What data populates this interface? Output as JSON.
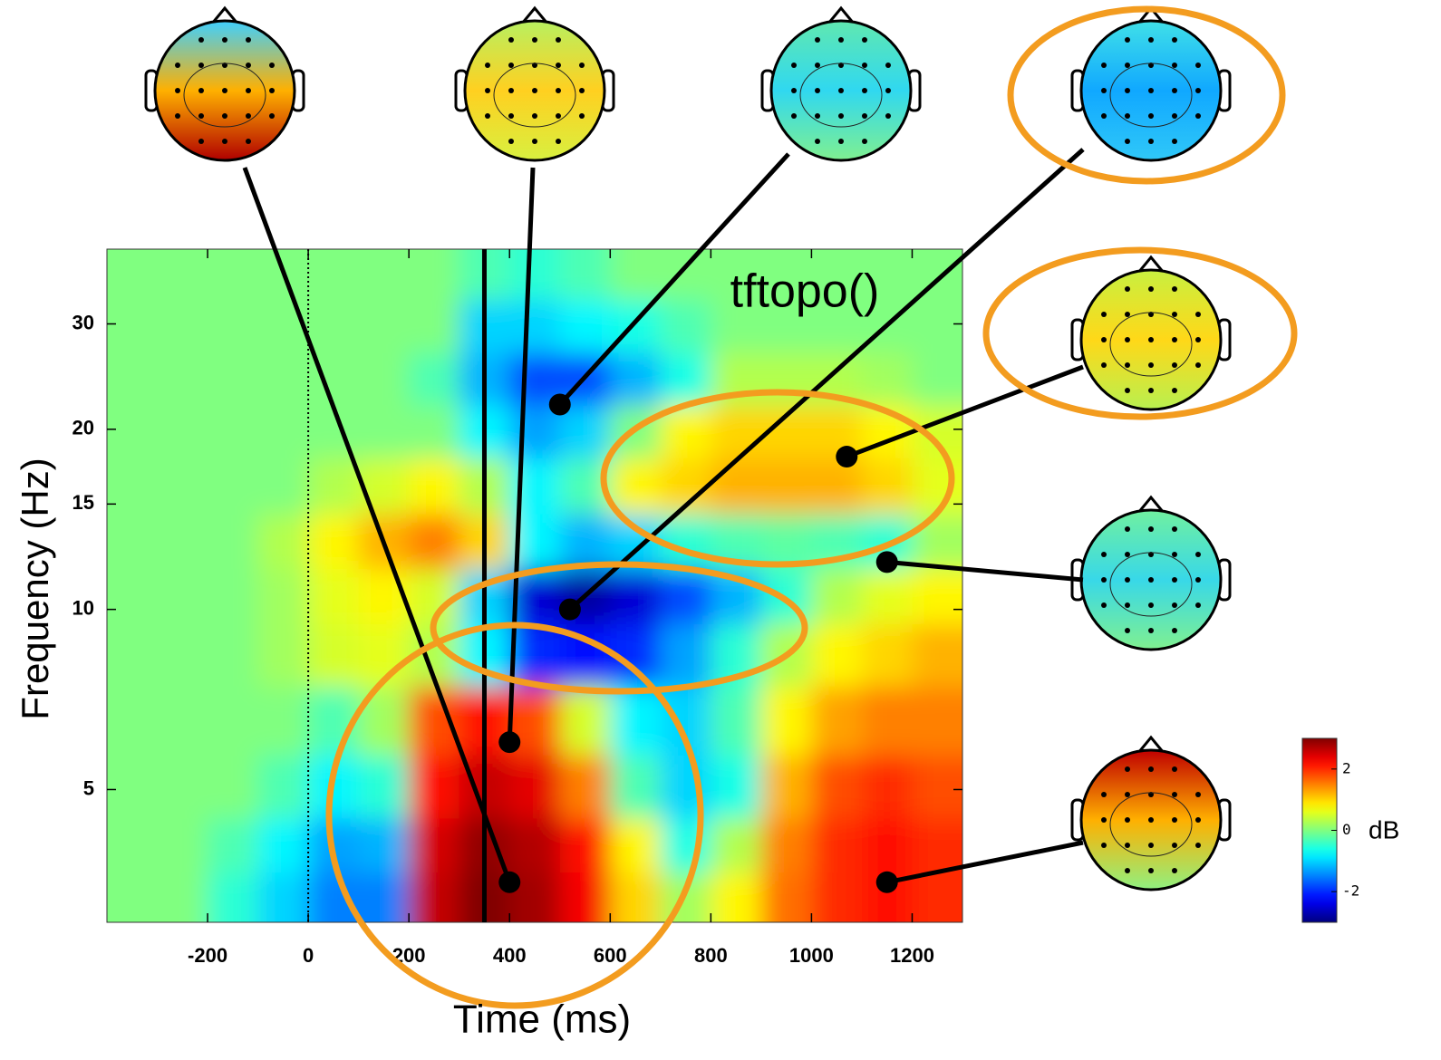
{
  "chart_data": {
    "type": "heatmap",
    "annotation": "tftopo()",
    "xlabel": "Time (ms)",
    "ylabel": "Frequency (Hz)",
    "xlim": [
      -400,
      1300
    ],
    "xticks": [
      -200,
      0,
      200,
      400,
      600,
      800,
      1000,
      1200
    ],
    "ylim": [
      3,
      40
    ],
    "yscale": "log",
    "yticks": [
      5,
      10,
      15,
      20,
      30
    ],
    "x": [
      -350,
      -250,
      -150,
      -50,
      50,
      150,
      250,
      350,
      450,
      550,
      650,
      750,
      850,
      950,
      1050,
      1150,
      1250
    ],
    "y": [
      36,
      30,
      24,
      20,
      16,
      13,
      10.5,
      8.5,
      6.5,
      5,
      4,
      3.3
    ],
    "z": [
      [
        0,
        0,
        0,
        0,
        0,
        0,
        0,
        -0.3,
        -0.5,
        -0.3,
        0,
        0,
        0,
        0,
        0,
        0,
        0
      ],
      [
        0,
        0,
        0,
        0,
        0,
        0,
        0,
        -1,
        -1,
        -0.8,
        -0.6,
        -0.3,
        0,
        0,
        0,
        0,
        0
      ],
      [
        0,
        0,
        0,
        0,
        0,
        0,
        -0.3,
        -1.2,
        -1.8,
        -1.8,
        -1.2,
        -0.6,
        0.3,
        0.3,
        0.3,
        0.2,
        0
      ],
      [
        0,
        0,
        0,
        0,
        0,
        0,
        0,
        -0.8,
        -1.3,
        -1,
        0,
        0.8,
        1,
        1,
        1,
        0.8,
        0.5
      ],
      [
        0,
        0,
        0,
        0,
        0.3,
        0.5,
        0.8,
        0.3,
        -0.8,
        -0.3,
        0.8,
        1,
        1.2,
        1.2,
        1.2,
        1,
        0.6
      ],
      [
        0,
        0,
        0,
        0.3,
        0.8,
        1.2,
        1.5,
        1,
        -0.8,
        -1.2,
        -1,
        -0.5,
        -0.3,
        -0.2,
        -0.3,
        -0.5,
        0.2
      ],
      [
        0,
        0,
        0,
        0.2,
        0.6,
        0.8,
        0.5,
        -1,
        -2.5,
        -2.8,
        -2.5,
        -1.8,
        -1.2,
        -0.5,
        0.3,
        0.6,
        0.8
      ],
      [
        0,
        0,
        0,
        0.2,
        0.5,
        0.6,
        0.3,
        -0.8,
        -2,
        -2.2,
        -2,
        -1.3,
        -0.5,
        0.3,
        0.8,
        1,
        1.2
      ],
      [
        0,
        0,
        0,
        0,
        -0.3,
        0.2,
        1.8,
        2.2,
        1.8,
        0.5,
        -0.8,
        -1,
        -0.3,
        0.8,
        1.3,
        1.5,
        1.5
      ],
      [
        0,
        0,
        0,
        -0.3,
        -0.8,
        -0.5,
        2.2,
        2.6,
        2.4,
        1.5,
        -0.3,
        -1,
        -0.6,
        1.2,
        1.8,
        2,
        1.8
      ],
      [
        0,
        0,
        -0.3,
        -0.8,
        -1.3,
        -1.2,
        2.5,
        2.9,
        2.7,
        2.2,
        0.8,
        -0.6,
        0.3,
        1.5,
        2,
        2.2,
        2
      ],
      [
        0,
        0,
        -0.5,
        -1,
        -1.5,
        -1.5,
        2.6,
        3,
        2.8,
        2.3,
        1,
        0.2,
        0.8,
        1.6,
        2,
        2.2,
        2
      ]
    ],
    "colormap": "jet",
    "clim": [
      -3,
      3
    ],
    "colorbar_ticks": [
      -2,
      0,
      2
    ],
    "colorbar_label": "dB",
    "vlines": [
      0,
      350
    ],
    "points": {
      "x": [
        400,
        400,
        500,
        520,
        1070,
        1150,
        1150
      ],
      "y": [
        3.5,
        6,
        22,
        10,
        18,
        12,
        3.5
      ]
    }
  }
}
